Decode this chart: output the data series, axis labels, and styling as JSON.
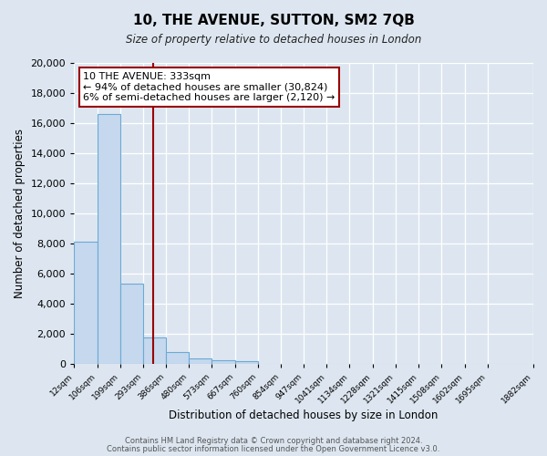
{
  "title": "10, THE AVENUE, SUTTON, SM2 7QB",
  "subtitle": "Size of property relative to detached houses in London",
  "xlabel": "Distribution of detached houses by size in London",
  "ylabel": "Number of detached properties",
  "bar_values": [
    8100,
    16600,
    5300,
    1750,
    750,
    350,
    250,
    175,
    0,
    0,
    0,
    0,
    0,
    0,
    0,
    0,
    0,
    0,
    0
  ],
  "bin_edges": [
    12,
    106,
    199,
    293,
    386,
    480,
    573,
    667,
    760,
    854,
    947,
    1041,
    1134,
    1228,
    1321,
    1415,
    1508,
    1602,
    1695,
    1882
  ],
  "tick_labels": [
    "12sqm",
    "106sqm",
    "199sqm",
    "293sqm",
    "386sqm",
    "480sqm",
    "573sqm",
    "667sqm",
    "760sqm",
    "854sqm",
    "947sqm",
    "1041sqm",
    "1134sqm",
    "1228sqm",
    "1321sqm",
    "1415sqm",
    "1508sqm",
    "1602sqm",
    "1695sqm",
    "1882sqm"
  ],
  "bar_color": "#c5d8ee",
  "bar_edge_color": "#6aaad4",
  "vline_x": 333,
  "vline_color": "#990000",
  "annotation_title": "10 THE AVENUE: 333sqm",
  "annotation_line1": "← 94% of detached houses are smaller (30,824)",
  "annotation_line2": "6% of semi-detached houses are larger (2,120) →",
  "annotation_box_color": "#ffffff",
  "annotation_box_edge": "#990000",
  "ylim": [
    0,
    20000
  ],
  "yticks": [
    0,
    2000,
    4000,
    6000,
    8000,
    10000,
    12000,
    14000,
    16000,
    18000,
    20000
  ],
  "footer1": "Contains HM Land Registry data © Crown copyright and database right 2024.",
  "footer2": "Contains public sector information licensed under the Open Government Licence v3.0.",
  "bg_color": "#dde6f0",
  "plot_bg_color": "#dde6f0",
  "grid_color": "#ffffff"
}
